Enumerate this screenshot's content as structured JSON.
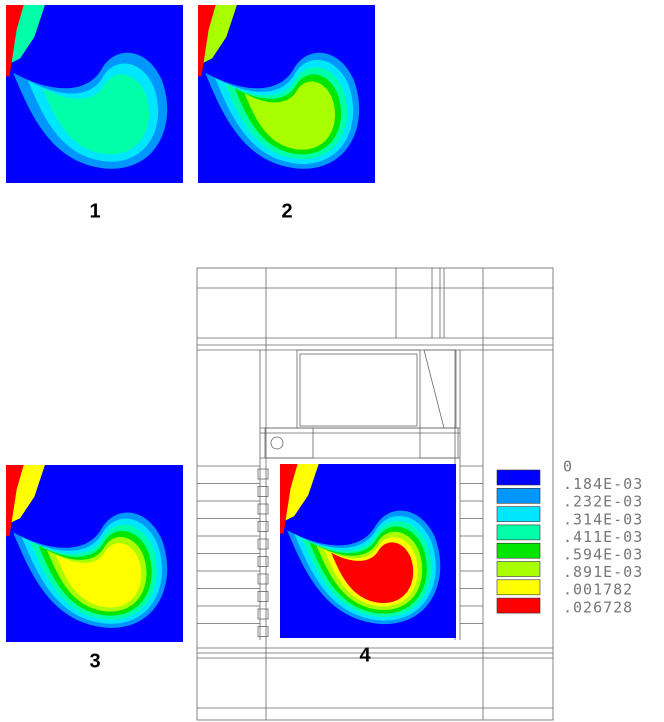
{
  "panels": [
    {
      "label": "1"
    },
    {
      "label": "2"
    },
    {
      "label": "3"
    },
    {
      "label": "4"
    }
  ],
  "legend": {
    "levels": [
      "0",
      ".184E-03",
      ".232E-03",
      ".314E-03",
      ".411E-03",
      ".594E-03",
      ".891E-03",
      ".001782",
      ".026728"
    ],
    "colors": [
      "#0000ff",
      "#0096ff",
      "#00e6ff",
      "#00ffa8",
      "#00e600",
      "#a8ff00",
      "#ffff00",
      "#ff0000"
    ]
  }
}
